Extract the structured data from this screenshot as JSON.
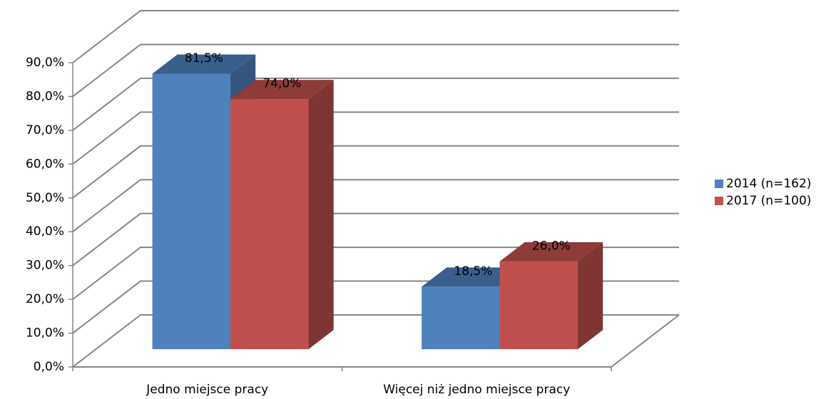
{
  "chart_data": {
    "type": "bar3d",
    "categories": [
      "Jedno miejsce pracy",
      "Więcej niż jedno miejsce pracy"
    ],
    "series": [
      {
        "name": "2014 (n=162)",
        "color": "#4f81bd",
        "values": [
          81.5,
          18.5
        ],
        "value_labels": [
          "81,5%",
          "18,5%"
        ]
      },
      {
        "name": "2017 (n=100)",
        "color": "#c0504d",
        "values": [
          74.0,
          26.0
        ],
        "value_labels": [
          "74,0%",
          "26,0%"
        ]
      }
    ],
    "ylim": [
      0,
      90
    ],
    "yticks": [
      {
        "value": 0,
        "label": "0,0%"
      },
      {
        "value": 10,
        "label": "10,0%"
      },
      {
        "value": 20,
        "label": "20,0%"
      },
      {
        "value": 30,
        "label": "30,0%"
      },
      {
        "value": 40,
        "label": "40,0%"
      },
      {
        "value": 50,
        "label": "50,0%"
      },
      {
        "value": 60,
        "label": "60,0%"
      },
      {
        "value": 70,
        "label": "70,0%"
      },
      {
        "value": 80,
        "label": "80,0%"
      },
      {
        "value": 90,
        "label": "90,0%"
      }
    ],
    "grid": true,
    "legend": "right"
  }
}
